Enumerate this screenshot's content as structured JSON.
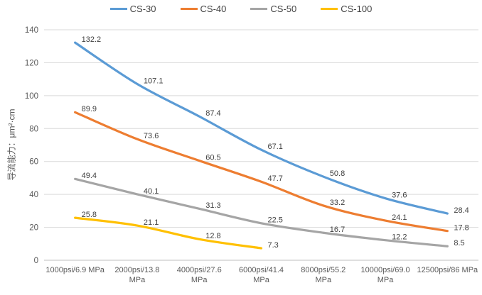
{
  "chart_data": {
    "type": "line",
    "title": "",
    "xlabel": "",
    "ylabel": "导流能力：μm²·cm",
    "ylim": [
      0,
      140
    ],
    "yticks": [
      0,
      20,
      40,
      60,
      80,
      100,
      120,
      140
    ],
    "grid": true,
    "smoothed": true,
    "legend_position": "top",
    "categories": [
      "1000psi/6.9 MPa",
      "2000psi/13.8 MPa",
      "4000psi/27.6 MPa",
      "6000psi/41.4 MPa",
      "8000psi/55.2 MPa",
      "10000psi/69.0 MPa",
      "12500psi/86 MPa"
    ],
    "category_lines": [
      [
        "1000psi/6.9 MPa"
      ],
      [
        "2000psi/13.8",
        "MPa"
      ],
      [
        "4000psi/27.6",
        "MPa"
      ],
      [
        "6000psi/41.4",
        "MPa"
      ],
      [
        "8000psi/55.2",
        "MPa"
      ],
      [
        "10000psi/69.0",
        "MPa"
      ],
      [
        "12500psi/86 MPa"
      ]
    ],
    "series": [
      {
        "name": "CS-30",
        "color": "#5B9BD5",
        "values": [
          132.2,
          107.1,
          87.4,
          67.1,
          50.8,
          37.6,
          28.4
        ]
      },
      {
        "name": "CS-40",
        "color": "#ED7D31",
        "values": [
          89.9,
          73.6,
          60.5,
          47.7,
          33.2,
          24.1,
          17.8
        ]
      },
      {
        "name": "CS-50",
        "color": "#A5A5A5",
        "values": [
          49.4,
          40.1,
          31.3,
          22.5,
          16.7,
          12.2,
          8.5
        ]
      },
      {
        "name": "CS-100",
        "color": "#FFC000",
        "values": [
          25.8,
          21.1,
          12.8,
          7.3
        ]
      }
    ]
  },
  "colors": {
    "gridline": "#D9D9D9",
    "axis_line": "#BFBFBF",
    "tick_label": "#595959",
    "category_label": "#595959",
    "data_label": "#404040",
    "legend_text": "#444444"
  }
}
